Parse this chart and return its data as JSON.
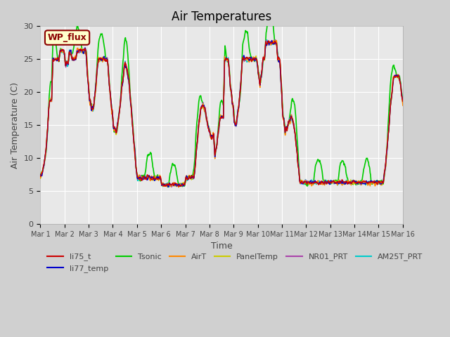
{
  "title": "Air Temperatures",
  "ylabel": "Air Temperature (C)",
  "xlabel": "Time",
  "ylim": [
    0,
    30
  ],
  "xlim": [
    0,
    15
  ],
  "xtick_labels": [
    "Mar 1",
    "Mar 2",
    "Mar 3",
    "Mar 4",
    "Mar 5",
    "Mar 6",
    "Mar 7",
    "Mar 8",
    "Mar 9",
    "Mar 10",
    "Mar 11",
    "Mar 12",
    "Mar 13",
    "Mar 14",
    "Mar 15",
    "Mar 16"
  ],
  "ytick_labels": [
    "0",
    "5",
    "10",
    "15",
    "20",
    "25",
    "30"
  ],
  "ytick_values": [
    0,
    5,
    10,
    15,
    20,
    25,
    30
  ],
  "background_color": "#e8e8e8",
  "plot_bg_color": "#e8e8e8",
  "grid_color": "white",
  "annotation_text": "WP_flux",
  "annotation_color": "#8B0000",
  "annotation_bg": "#ffffcc",
  "legend_entries": [
    "li75_t",
    "li77_temp",
    "Tsonic",
    "AirT",
    "PanelTemp",
    "NR01_PRT",
    "AM25T_PRT"
  ],
  "line_colors": {
    "li75_t": "#cc0000",
    "li77_temp": "#0000cc",
    "Tsonic": "#00cc00",
    "AirT": "#ff8800",
    "PanelTemp": "#cccc00",
    "NR01_PRT": "#aa44aa",
    "AM25T_PRT": "#00cccc"
  },
  "line_widths": {
    "li75_t": 1.0,
    "li77_temp": 1.0,
    "Tsonic": 1.2,
    "AirT": 1.0,
    "PanelTemp": 1.0,
    "NR01_PRT": 1.0,
    "AM25T_PRT": 1.0
  }
}
